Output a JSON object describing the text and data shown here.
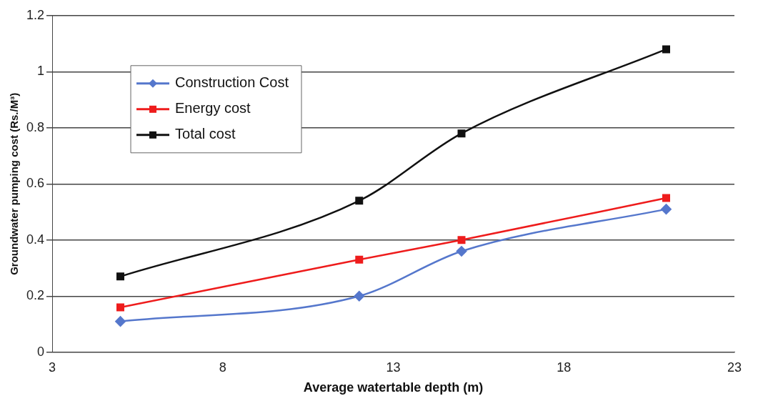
{
  "chart_data": {
    "type": "line",
    "xlabel": "Average watertable depth (m)",
    "ylabel": "Groundwater pumping cost (Rs./M³)",
    "x": [
      5,
      12,
      15,
      21
    ],
    "series": [
      {
        "name": "Construction Cost",
        "color": "#5577cc",
        "marker": "diamond",
        "values": [
          0.11,
          0.2,
          0.36,
          0.51
        ]
      },
      {
        "name": "Energy cost",
        "color": "#ee1c1c",
        "marker": "square",
        "values": [
          0.16,
          0.33,
          0.4,
          0.55
        ]
      },
      {
        "name": "Total cost",
        "color": "#111111",
        "marker": "square",
        "values": [
          0.27,
          0.54,
          0.78,
          1.08
        ]
      }
    ],
    "xlim": [
      3,
      23
    ],
    "xticks": [
      3,
      8,
      13,
      18,
      23
    ],
    "ylim": [
      0,
      1.2
    ],
    "yticks": [
      0,
      0.2,
      0.4,
      0.6,
      0.8,
      1,
      1.2
    ],
    "grid": "y",
    "legend": "top left",
    "line_style": "solid"
  }
}
